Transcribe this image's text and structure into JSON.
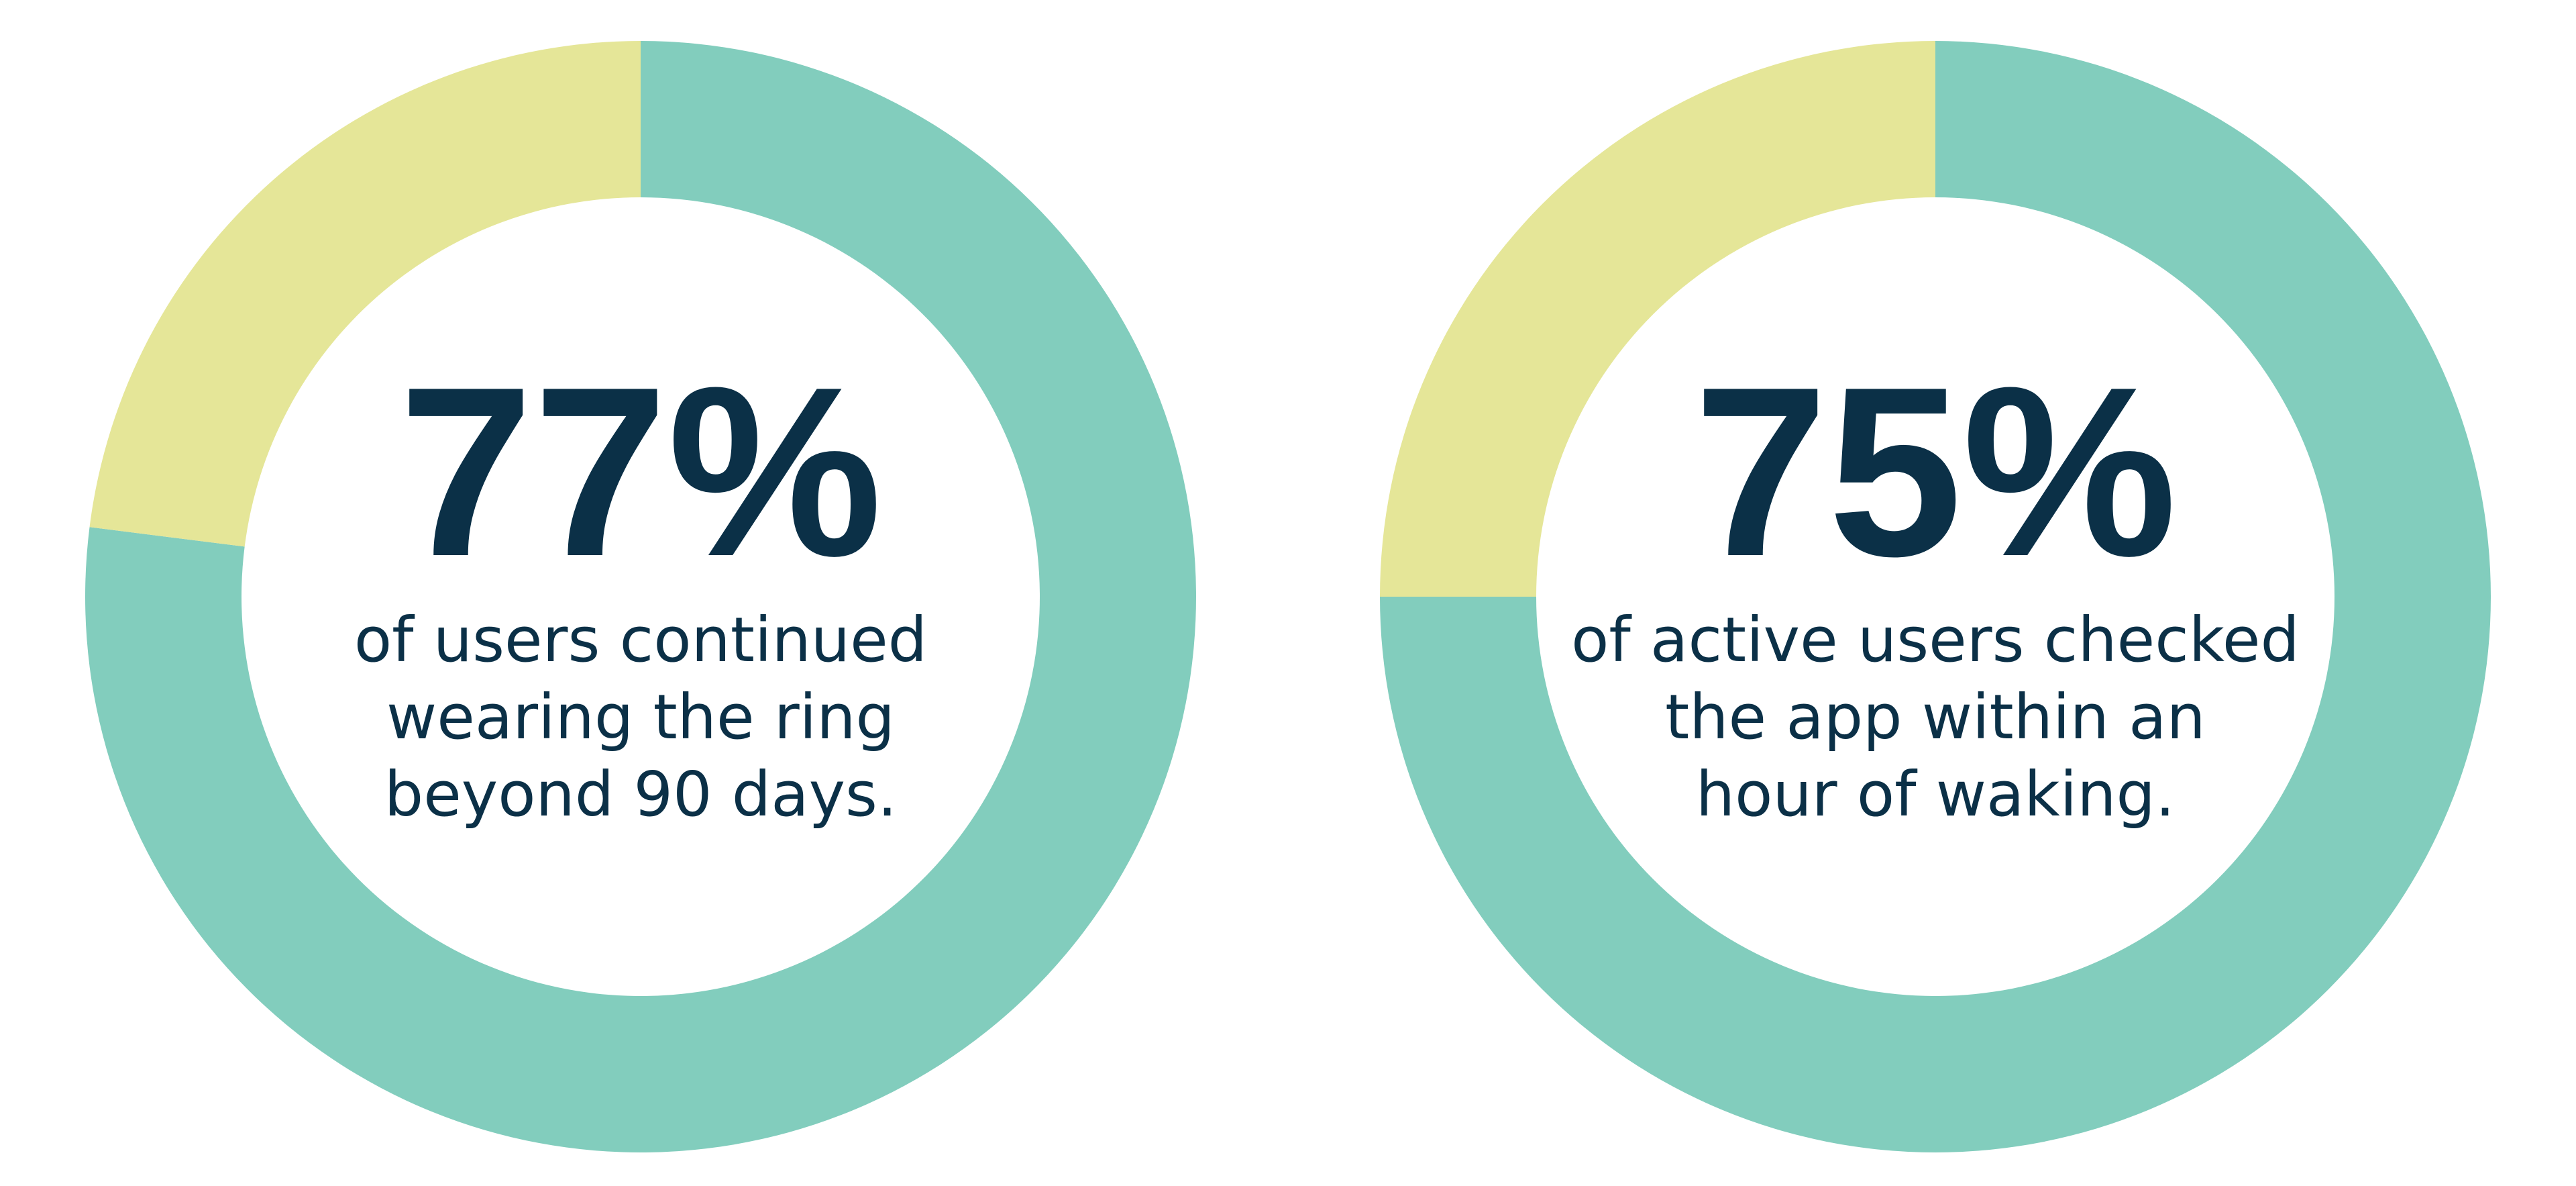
{
  "chart_data": [
    {
      "type": "donut",
      "values": [
        77,
        23
      ],
      "value_labels": [
        "77%",
        null
      ],
      "colors": [
        "#82cdbd",
        "#e5e698"
      ],
      "annotation": [
        "of users continued",
        "wearing the ring",
        "beyond 90 days."
      ]
    },
    {
      "type": "donut",
      "values": [
        75,
        25
      ],
      "value_labels": [
        "75%",
        null
      ],
      "colors": [
        "#82cdbd",
        "#e5e698"
      ],
      "annotation": [
        "of active users checked",
        "the app within an",
        "hour of waking."
      ]
    }
  ]
}
